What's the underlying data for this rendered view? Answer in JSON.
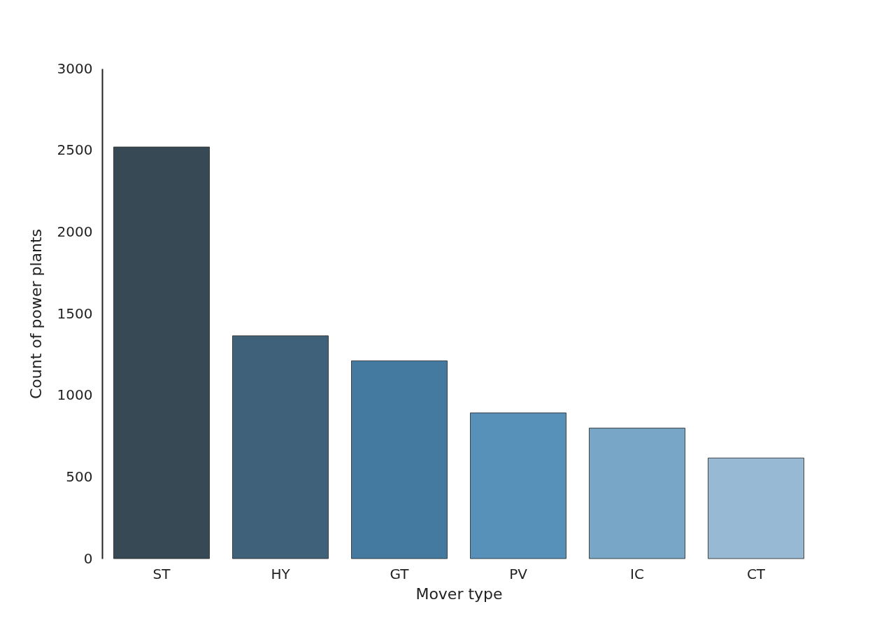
{
  "chart_data": {
    "type": "bar",
    "xlabel": "Mover type",
    "ylabel": "Count of power plants",
    "categories": [
      "ST",
      "HY",
      "GT",
      "PV",
      "IC",
      "CT"
    ],
    "values": [
      2520,
      1364,
      1211,
      892,
      799,
      616
    ],
    "colors": [
      "#374955",
      "#3f6179",
      "#447a9f",
      "#5790b9",
      "#77a6c6",
      "#98b9d3"
    ],
    "ylim": [
      0,
      3000
    ],
    "yticks": [
      0,
      500,
      1000,
      1500,
      2000,
      2500,
      3000
    ],
    "grid": false
  }
}
